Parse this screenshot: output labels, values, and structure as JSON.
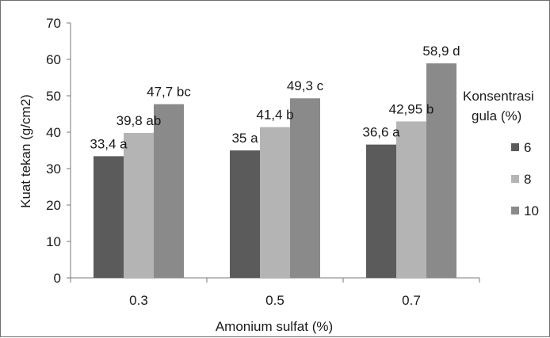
{
  "chart_data": {
    "type": "bar",
    "title": "",
    "xlabel": "Amonium sulfat (%)",
    "ylabel": "Kuat tekan (g/cm2)",
    "ylim": [
      0,
      70
    ],
    "yticks": [
      0,
      10,
      20,
      30,
      40,
      50,
      60,
      70
    ],
    "grid": false,
    "categories": [
      "0.3",
      "0.5",
      "0.7"
    ],
    "legend": {
      "title_lines": [
        "Konsentrasi",
        "gula (%)"
      ],
      "placement": "right"
    },
    "series": [
      {
        "name": "6",
        "color": "#5b5b5b",
        "values": [
          33.4,
          35,
          36.6
        ],
        "labels": [
          "33,4 a",
          "35 a",
          "36,6 a"
        ]
      },
      {
        "name": "8",
        "color": "#b4b4b4",
        "values": [
          39.8,
          41.4,
          42.95
        ],
        "labels": [
          "39,8 ab",
          "41,4 b",
          "42,95 b"
        ]
      },
      {
        "name": "10",
        "color": "#8a8a8a",
        "values": [
          47.7,
          49.3,
          58.9
        ],
        "labels": [
          "47,7 bc",
          "49,3 c",
          "58,9 d"
        ]
      }
    ]
  }
}
